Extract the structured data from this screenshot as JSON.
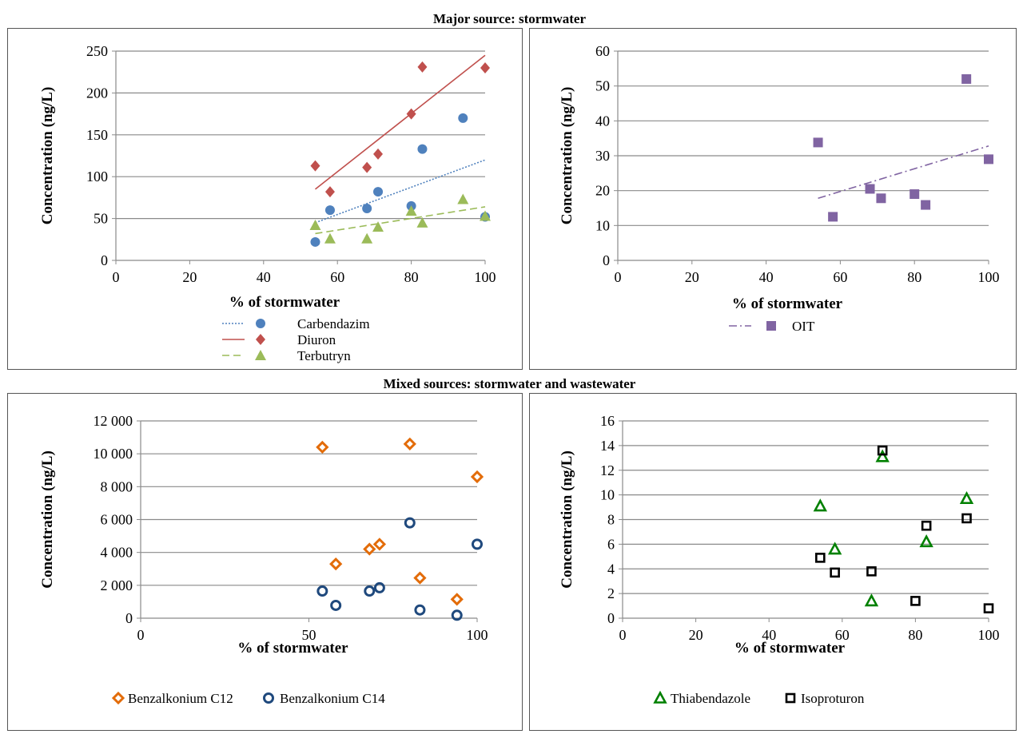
{
  "sections": {
    "top_title": "Major source: stormwater",
    "bottom_title": "Mixed sources: stormwater and wastewater"
  },
  "chart_data": [
    {
      "id": "c1",
      "type": "scatter",
      "xlabel": "% of stormwater",
      "ylabel": "Concentration (ng/L)",
      "xlim": [
        0,
        100
      ],
      "ylim": [
        0,
        250
      ],
      "xticks": [
        0,
        20,
        40,
        60,
        80,
        100
      ],
      "yticks": [
        0,
        50,
        100,
        150,
        200,
        250
      ],
      "grid": "horizontal",
      "legend_position": "bottom",
      "series": [
        {
          "name": "Carbendazim",
          "marker": "circle",
          "color": "#4F81BD",
          "x": [
            54,
            58,
            68,
            71,
            80,
            83,
            94,
            100
          ],
          "y": [
            22,
            60,
            62,
            82,
            65,
            133,
            170,
            52
          ],
          "trendline": {
            "style": "dotted",
            "from": [
              54,
              45
            ],
            "to": [
              100,
              120
            ]
          }
        },
        {
          "name": "Diuron",
          "marker": "diamond",
          "color": "#C0504D",
          "x": [
            54,
            58,
            68,
            71,
            80,
            83,
            100
          ],
          "y": [
            113,
            82,
            111,
            127,
            175,
            231,
            230
          ],
          "trendline": {
            "style": "solid",
            "from": [
              54,
              85
            ],
            "to": [
              100,
              245
            ]
          }
        },
        {
          "name": "Terbutryn",
          "marker": "triangle",
          "color": "#9BBB59",
          "x": [
            54,
            58,
            68,
            71,
            80,
            83,
            94,
            100
          ],
          "y": [
            42,
            26,
            26,
            40,
            59,
            45,
            73,
            53
          ],
          "trendline": {
            "style": "dashed",
            "from": [
              54,
              32
            ],
            "to": [
              100,
              64
            ]
          }
        }
      ]
    },
    {
      "id": "c2",
      "type": "scatter",
      "xlabel": "% of stormwater",
      "ylabel": "Concentration (ng/L)",
      "xlim": [
        0,
        100
      ],
      "ylim": [
        0,
        60
      ],
      "xticks": [
        0,
        20,
        40,
        60,
        80,
        100
      ],
      "yticks": [
        0,
        10,
        20,
        30,
        40,
        50,
        60
      ],
      "grid": "horizontal",
      "legend_position": "bottom",
      "series": [
        {
          "name": "OIT",
          "marker": "square",
          "color": "#8064A2",
          "x": [
            54,
            58,
            68,
            71,
            80,
            83,
            94,
            100
          ],
          "y": [
            33.8,
            12.5,
            20.5,
            17.8,
            19,
            15.9,
            52,
            29
          ],
          "trendline": {
            "style": "dashdot",
            "from": [
              54,
              17.8
            ],
            "to": [
              100,
              32.8
            ]
          }
        }
      ]
    },
    {
      "id": "c3",
      "type": "scatter",
      "xlabel": "% of stormwater",
      "ylabel": "Concentration (ng/L)",
      "xlim": [
        0,
        100
      ],
      "ylim": [
        0,
        12000
      ],
      "xticks": [
        0,
        50,
        100
      ],
      "yticks": [
        0,
        2000,
        4000,
        6000,
        8000,
        10000,
        12000
      ],
      "ytick_labels": [
        "0",
        "2 000",
        "4 000",
        "6 000",
        "8 000",
        "10 000",
        "12 000"
      ],
      "grid": "horizontal",
      "legend_position": "bottom",
      "series": [
        {
          "name": "Benzalkonium C12",
          "marker": "hollow-diamond",
          "color": "#E36C09",
          "x": [
            54,
            58,
            68,
            71,
            80,
            83,
            94,
            100
          ],
          "y": [
            10400,
            3300,
            4200,
            4500,
            10600,
            2450,
            1150,
            8600
          ]
        },
        {
          "name": "Benzalkonium C14",
          "marker": "hollow-circle",
          "color": "#1F497D",
          "x": [
            54,
            58,
            68,
            71,
            80,
            83,
            94,
            100
          ],
          "y": [
            1650,
            780,
            1650,
            1850,
            5800,
            500,
            180,
            4500
          ]
        }
      ]
    },
    {
      "id": "c4",
      "type": "scatter",
      "xlabel": "% of stormwater",
      "ylabel": "Concentration (ng/L)",
      "xlim": [
        0,
        100
      ],
      "ylim": [
        0,
        16
      ],
      "xticks": [
        0,
        20,
        40,
        60,
        80,
        100
      ],
      "yticks": [
        0,
        2,
        4,
        6,
        8,
        10,
        12,
        14,
        16
      ],
      "grid": "horizontal",
      "legend_position": "bottom",
      "series": [
        {
          "name": "Thiabendazole",
          "marker": "hollow-triangle",
          "color": "#008000",
          "x": [
            54,
            58,
            68,
            71,
            83,
            94
          ],
          "y": [
            9.1,
            5.6,
            1.4,
            13.1,
            6.2,
            9.7
          ]
        },
        {
          "name": "Isoproturon",
          "marker": "hollow-square",
          "color": "#000000",
          "x": [
            54,
            58,
            68,
            71,
            80,
            83,
            94,
            100
          ],
          "y": [
            4.9,
            3.7,
            3.8,
            13.6,
            1.4,
            7.5,
            8.1,
            0.8
          ]
        }
      ]
    }
  ]
}
